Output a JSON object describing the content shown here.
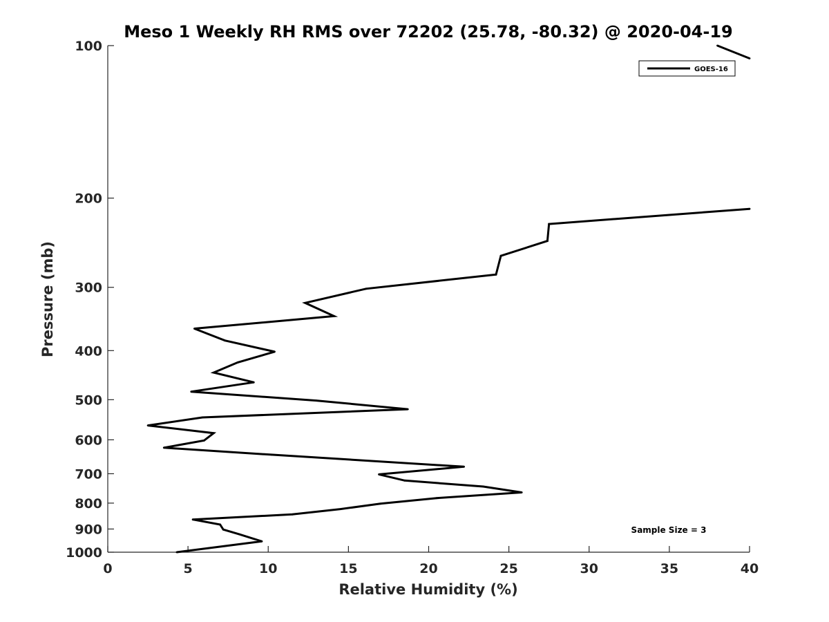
{
  "chart_data": {
    "type": "line",
    "title": "Meso 1 Weekly RH RMS over 72202 (25.78, -80.32) @ 2020-04-19",
    "xlabel": "Relative Humidity (%)",
    "ylabel": "Pressure (mb)",
    "xlim": [
      0,
      40
    ],
    "ylim": [
      100,
      1000
    ],
    "yscale": "log",
    "xticks": [
      0,
      5,
      10,
      15,
      20,
      25,
      30,
      35,
      40
    ],
    "xtick_labels": [
      "0",
      "5",
      "10",
      "15",
      "20",
      "25",
      "30",
      "35",
      "40"
    ],
    "yticks": [
      100,
      200,
      300,
      400,
      500,
      600,
      700,
      800,
      900,
      1000
    ],
    "ytick_labels": [
      "100",
      "200",
      "300",
      "400",
      "500",
      "600",
      "700",
      "800",
      "900",
      "1000"
    ],
    "legend": {
      "position": "top-right",
      "entries": [
        "GOES-16"
      ]
    },
    "annotation": "Sample Size = 3",
    "line_color": "#000000",
    "series": [
      {
        "name": "GOES-16",
        "segments": [
          [
            {
              "x": 38.0,
              "p": 100
            },
            {
              "x": 40.0,
              "p": 106
            }
          ],
          [
            {
              "x": 40.0,
              "p": 210
            },
            {
              "x": 27.5,
              "p": 225
            },
            {
              "x": 27.4,
              "p": 243
            },
            {
              "x": 24.5,
              "p": 260
            },
            {
              "x": 24.2,
              "p": 283
            },
            {
              "x": 16.1,
              "p": 302
            },
            {
              "x": 12.3,
              "p": 322
            },
            {
              "x": 14.1,
              "p": 342
            },
            {
              "x": 5.4,
              "p": 362
            },
            {
              "x": 7.3,
              "p": 382
            },
            {
              "x": 10.4,
              "p": 402
            },
            {
              "x": 8.1,
              "p": 422
            },
            {
              "x": 6.6,
              "p": 442
            },
            {
              "x": 9.1,
              "p": 462
            },
            {
              "x": 5.2,
              "p": 482
            },
            {
              "x": 13.0,
              "p": 502
            },
            {
              "x": 18.7,
              "p": 522
            },
            {
              "x": 5.9,
              "p": 542
            },
            {
              "x": 2.5,
              "p": 562
            },
            {
              "x": 6.6,
              "p": 582
            },
            {
              "x": 6.0,
              "p": 602
            },
            {
              "x": 3.5,
              "p": 622
            },
            {
              "x": 10.2,
              "p": 642
            },
            {
              "x": 22.2,
              "p": 678
            },
            {
              "x": 16.9,
              "p": 702
            },
            {
              "x": 18.5,
              "p": 722
            },
            {
              "x": 23.4,
              "p": 742
            },
            {
              "x": 25.8,
              "p": 762
            },
            {
              "x": 20.5,
              "p": 782
            },
            {
              "x": 17.0,
              "p": 802
            },
            {
              "x": 14.5,
              "p": 822
            },
            {
              "x": 11.5,
              "p": 842
            },
            {
              "x": 5.3,
              "p": 862
            },
            {
              "x": 7.0,
              "p": 882
            },
            {
              "x": 7.2,
              "p": 902
            },
            {
              "x": 8.2,
              "p": 922
            },
            {
              "x": 9.6,
              "p": 952
            },
            {
              "x": 4.3,
              "p": 1000
            }
          ]
        ]
      }
    ]
  }
}
